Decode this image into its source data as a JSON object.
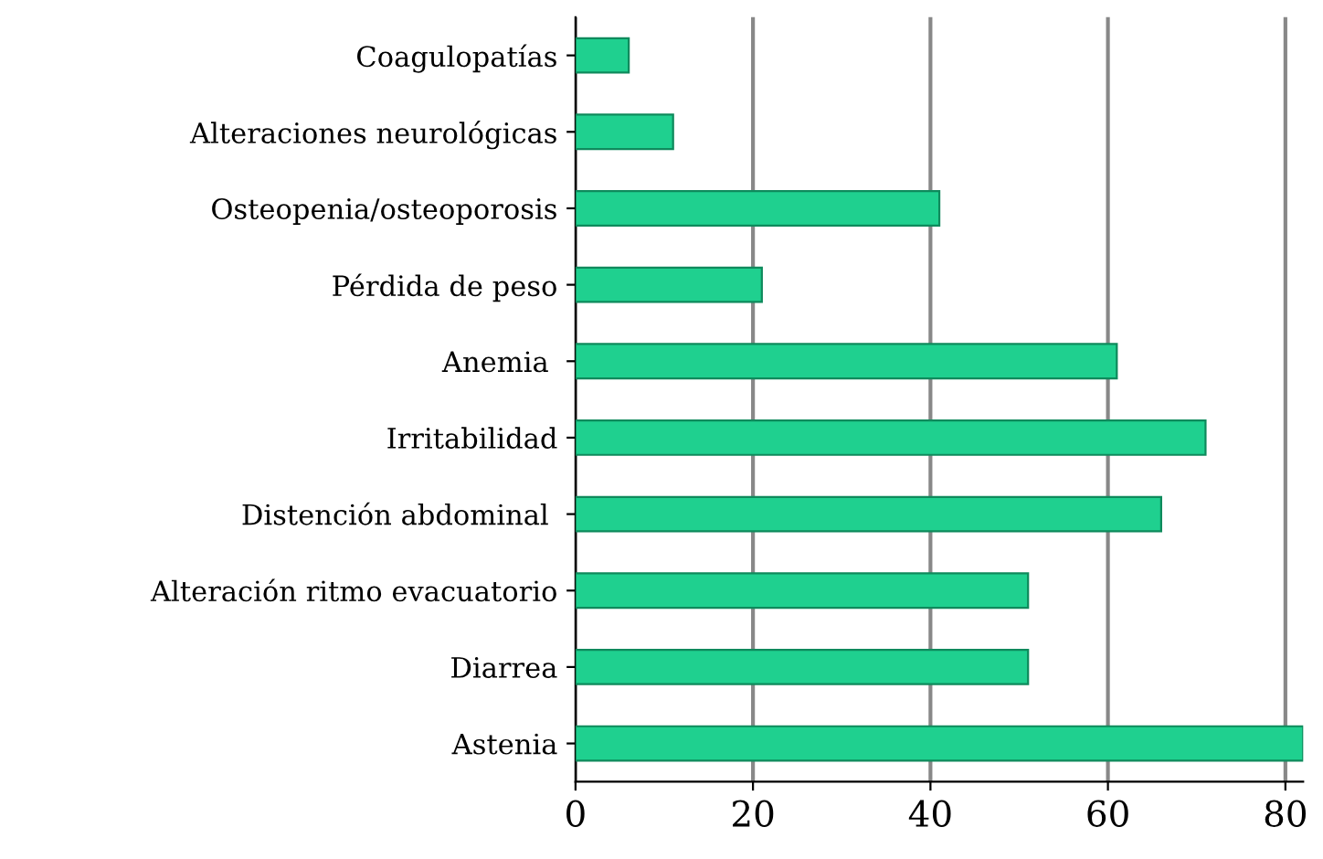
{
  "chart_data": {
    "type": "bar",
    "orientation": "horizontal",
    "categories": [
      "Coagulopatías",
      "Alteraciones neurológicas",
      "Osteopenia/osteoporosis",
      "Pérdida de peso",
      "Anemia ",
      "Irritabilidad",
      "Distención abdominal ",
      "Alteración ritmo evacuatorio",
      "Diarrea",
      "Astenia"
    ],
    "values": [
      6,
      11,
      41,
      21,
      61,
      71,
      66,
      51,
      51,
      82
    ],
    "color": "#1fd08f",
    "xlim": [
      0,
      82
    ],
    "xticks": [
      0,
      20,
      40,
      60,
      80
    ],
    "grid": "x"
  }
}
